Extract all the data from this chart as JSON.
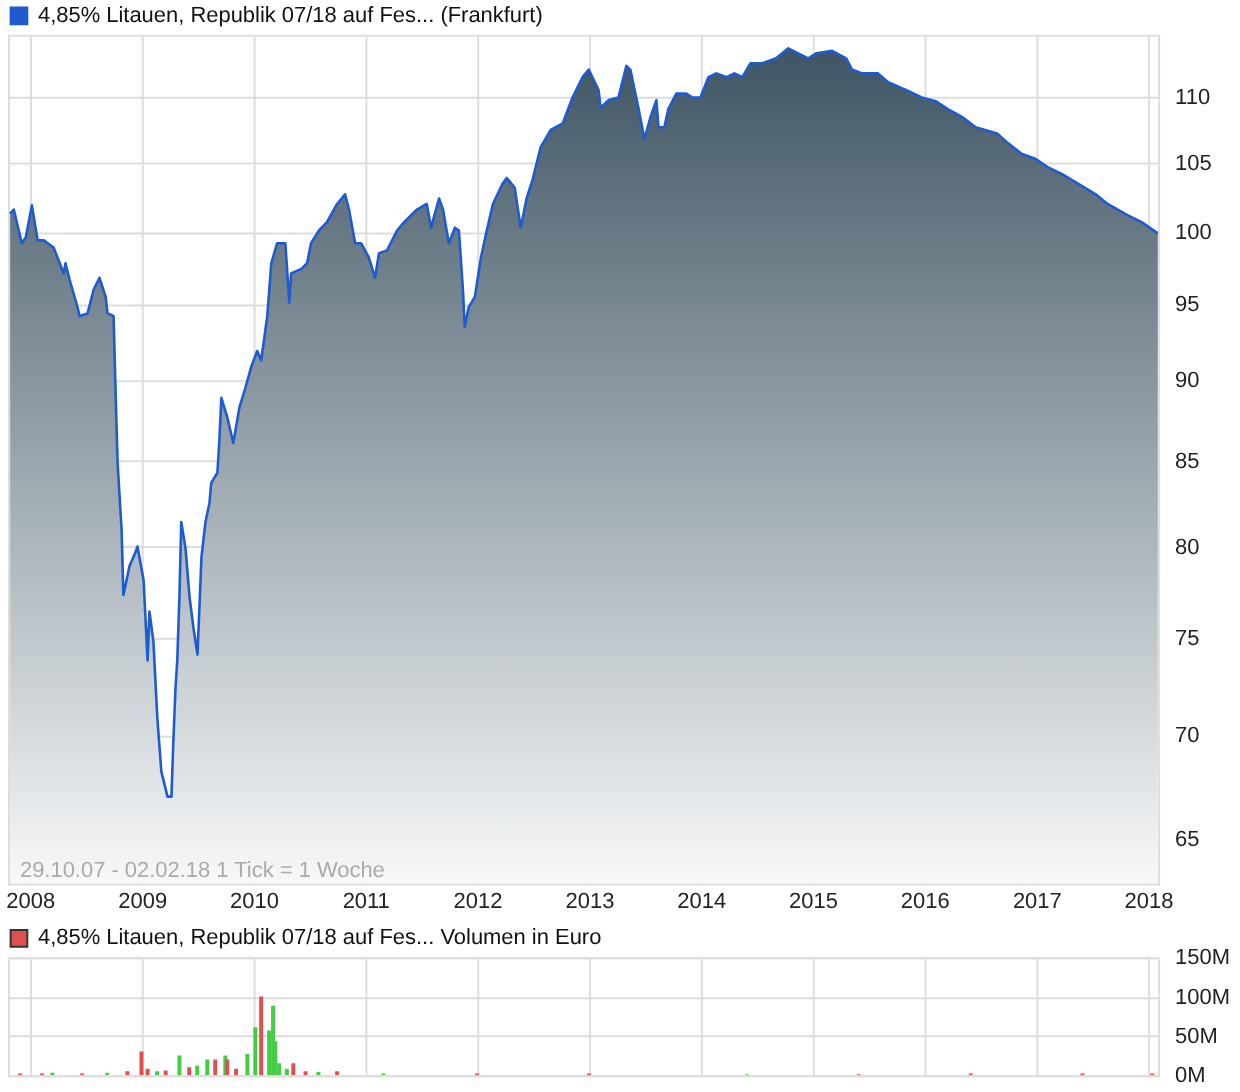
{
  "chart_data": [
    {
      "type": "area",
      "legend": "top left",
      "grid": true,
      "log": "y",
      "xlim": [
        "2007-10-22",
        "2018-02-03"
      ],
      "xticks": [
        "2008",
        "2009",
        "2010",
        "2011",
        "2012",
        "2013",
        "2014",
        "2015",
        "2016",
        "2017",
        "2018"
      ],
      "ylim": [
        63,
        115
      ],
      "yticks": [
        65,
        70,
        75,
        80,
        85,
        90,
        95,
        100,
        105,
        110
      ],
      "annotations": [
        "29.10.07 - 02.02.18   1 Tick = 1 Woche"
      ],
      "series": [
        {
          "name": "4,85% Litauen, Republik 07/18 auf Fes... (Frankfurt)",
          "color": "#1f5bd0",
          "x": [
            "2007-10-29",
            "2007-11-10",
            "2007-12-06",
            "2007-12-19",
            "2008-01-08",
            "2008-01-27",
            "2008-02-16",
            "2008-03-19",
            "2008-04-08",
            "2008-04-21",
            "2008-04-27",
            "2008-05-10",
            "2008-06-05",
            "2008-06-12",
            "2008-07-08",
            "2008-07-28",
            "2008-08-16",
            "2008-09-05",
            "2008-09-11",
            "2008-10-01",
            "2008-10-07",
            "2008-10-14",
            "2008-10-27",
            "2008-11-02",
            "2008-11-22",
            "2008-12-12",
            "2008-12-18",
            "2009-01-07",
            "2009-01-20",
            "2009-01-26",
            "2009-02-08",
            "2009-02-21",
            "2009-03-06",
            "2009-03-26",
            "2009-04-08",
            "2009-04-14",
            "2009-04-21",
            "2009-04-27",
            "2009-05-04",
            "2009-05-10",
            "2009-05-24",
            "2009-06-06",
            "2009-06-19",
            "2009-07-02",
            "2009-07-15",
            "2009-07-28",
            "2009-08-10",
            "2009-08-16",
            "2009-09-05",
            "2009-09-11",
            "2009-09-18",
            "2009-10-07",
            "2009-10-27",
            "2009-11-16",
            "2009-12-05",
            "2009-12-25",
            "2010-01-13",
            "2010-01-26",
            "2010-02-15",
            "2010-02-28",
            "2010-03-19",
            "2010-04-15",
            "2010-04-28",
            "2010-05-04",
            "2010-06-06",
            "2010-06-25",
            "2010-07-08",
            "2010-08-03",
            "2010-08-29",
            "2010-10-01",
            "2010-10-27",
            "2010-11-09",
            "2010-11-29",
            "2010-12-18",
            "2011-01-13",
            "2011-02-02",
            "2011-02-15",
            "2011-03-13",
            "2011-04-15",
            "2011-05-04",
            "2011-06-19",
            "2011-07-21",
            "2011-08-04",
            "2011-08-30",
            "2011-09-12",
            "2011-10-01",
            "2011-10-21",
            "2011-11-03",
            "2011-11-16",
            "2011-11-22",
            "2011-12-05",
            "2011-12-25",
            "2012-01-14",
            "2012-02-02",
            "2012-02-22",
            "2012-03-25",
            "2012-04-07",
            "2012-05-03",
            "2012-05-23",
            "2012-06-11",
            "2012-07-01",
            "2012-07-27",
            "2012-08-29",
            "2012-10-07",
            "2012-11-08",
            "2012-12-11",
            "2012-12-31",
            "2013-02-01",
            "2013-02-08",
            "2013-03-06",
            "2013-04-07",
            "2013-05-03",
            "2013-05-16",
            "2013-06-12",
            "2013-07-01",
            "2013-07-21",
            "2013-08-09",
            "2013-08-16",
            "2013-09-04",
            "2013-09-17",
            "2013-10-13",
            "2013-11-15",
            "2013-12-05",
            "2013-12-31",
            "2014-01-26",
            "2014-02-21",
            "2014-03-26",
            "2014-04-21",
            "2014-05-17",
            "2014-06-12",
            "2014-07-21",
            "2014-09-04",
            "2014-10-14",
            "2014-11-15",
            "2014-12-18",
            "2015-01-13",
            "2015-03-06",
            "2015-04-21",
            "2015-05-10",
            "2015-06-12",
            "2015-08-03",
            "2015-09-05",
            "2015-11-02",
            "2015-12-24",
            "2016-02-08",
            "2016-03-18",
            "2016-05-03",
            "2016-06-17",
            "2016-08-28",
            "2016-09-30",
            "2016-11-14",
            "2016-12-30",
            "2017-02-07",
            "2017-03-25",
            "2017-05-09",
            "2017-07-14",
            "2017-08-22",
            "2017-10-26",
            "2017-12-11",
            "2018-02-02"
          ],
          "values": [
            101.3,
            101.6,
            99.2,
            99.6,
            101.9,
            99.4,
            99.4,
            98.9,
            97.8,
            97.1,
            97.8,
            96.7,
            94.8,
            94.2,
            94.4,
            96.0,
            96.8,
            95.5,
            94.4,
            94.2,
            89.6,
            84.9,
            81.0,
            77.3,
            78.9,
            79.7,
            80.0,
            78.1,
            73.8,
            76.4,
            74.8,
            70.8,
            68.2,
            67.0,
            67.0,
            69.6,
            72.3,
            73.8,
            77.2,
            81.4,
            79.9,
            77.2,
            75.5,
            74.1,
            79.4,
            81.4,
            82.5,
            83.7,
            84.3,
            86.1,
            88.9,
            87.7,
            86.1,
            88.3,
            89.5,
            90.9,
            91.9,
            91.3,
            94.2,
            97.8,
            99.2,
            99.2,
            95.1,
            97.1,
            97.4,
            97.8,
            99.2,
            100.1,
            100.7,
            102.0,
            102.7,
            101.6,
            99.2,
            99.2,
            98.2,
            96.8,
            98.5,
            98.7,
            100.1,
            100.6,
            101.6,
            102.0,
            100.3,
            102.4,
            101.6,
            99.2,
            100.3,
            100.1,
            96.0,
            93.5,
            94.8,
            95.5,
            98.2,
            100.1,
            102.0,
            103.5,
            103.9,
            103.2,
            100.3,
            102.4,
            103.8,
            106.2,
            107.5,
            108.0,
            110.0,
            111.6,
            112.2,
            110.6,
            109.2,
            109.8,
            110.0,
            112.5,
            112.2,
            109.1,
            106.8,
            108.5,
            109.8,
            107.7,
            107.7,
            109.1,
            110.3,
            110.3,
            110.0,
            110.0,
            111.6,
            111.9,
            111.6,
            111.9,
            111.6,
            112.7,
            112.7,
            113.1,
            113.9,
            113.5,
            113.1,
            113.5,
            113.7,
            113.1,
            112.2,
            111.9,
            111.9,
            111.2,
            110.6,
            110.0,
            109.7,
            109.1,
            108.5,
            107.7,
            107.2,
            106.5,
            105.7,
            105.3,
            104.7,
            104.2,
            103.6,
            102.7,
            102.0,
            101.2,
            100.7,
            99.9
          ]
        }
      ]
    },
    {
      "type": "bar",
      "legend": "top left",
      "grid": true,
      "tick_labels": "y",
      "xlim": [
        "2007-10-22",
        "2018-02-03"
      ],
      "xticks": [
        {
          "value": "2008",
          "label": null
        },
        {
          "value": "2009",
          "label": null
        },
        {
          "value": "2010",
          "label": null
        },
        {
          "value": "2011",
          "label": null
        },
        {
          "value": "2012",
          "label": null
        },
        {
          "value": "2013",
          "label": null
        },
        {
          "value": "2014",
          "label": null
        },
        {
          "value": "2015",
          "label": null
        },
        {
          "value": "2016",
          "label": null
        },
        {
          "value": "2017",
          "label": null
        },
        {
          "value": "2018",
          "label": null
        }
      ],
      "ylim": [
        0,
        150
      ],
      "yticks": [
        {
          "value": 0,
          "label": "0M"
        },
        {
          "value": 50,
          "label": "50M"
        },
        {
          "value": 100,
          "label": "100M"
        },
        {
          "value": 150,
          "label": "150M"
        }
      ],
      "series": [
        {
          "name": "4,85% Litauen, Republik 07/18 auf Fes... Volumen in Euro",
          "color": "#e05050",
          "x": [
            "2007-12-01",
            "2008-02-10",
            "2008-03-15",
            "2008-06-20",
            "2008-09-10",
            "2008-11-15",
            "2008-12-31",
            "2009-01-20",
            "2009-02-20",
            "2009-03-20",
            "2009-05-04",
            "2009-06-05",
            "2009-07-01",
            "2009-08-03",
            "2009-08-29",
            "2009-10-01",
            "2009-10-07",
            "2009-11-05",
            "2009-12-12",
            "2010-01-07",
            "2010-01-26",
            "2010-02-21",
            "2010-03-06",
            "2010-03-13",
            "2010-03-26",
            "2010-04-20",
            "2010-05-11",
            "2010-06-20",
            "2010-08-01",
            "2010-10-01",
            "2011-03-01",
            "2012-01-01",
            "2013-01-01",
            "2014-06-01",
            "2015-06-01",
            "2016-06-01",
            "2017-06-01",
            "2018-01-15"
          ],
          "values": [
            2,
            2,
            3,
            2,
            3,
            5,
            30,
            8,
            5,
            6,
            25,
            10,
            12,
            20,
            20,
            25,
            20,
            8,
            27,
            61,
            100,
            57,
            88,
            43,
            15,
            8,
            15,
            5,
            4,
            5,
            2,
            2,
            2,
            1,
            1,
            2,
            2,
            2
          ],
          "colors": [
            "#e05050",
            "#e05050",
            "#44cc44",
            "#e05050",
            "#44cc44",
            "#e05050",
            "#e05050",
            "#e05050",
            "#44cc44",
            "#e05050",
            "#44cc44",
            "#e05050",
            "#44cc44",
            "#44cc44",
            "#e05050",
            "#44cc44",
            "#e05050",
            "#e05050",
            "#44cc44",
            "#44cc44",
            "#e05050",
            "#44cc44",
            "#44cc44",
            "#44cc44",
            "#44cc44",
            "#44cc44",
            "#e05050",
            "#e05050",
            "#44cc44",
            "#e05050",
            "#44cc44",
            "#e05050",
            "#e05050",
            "#44cc44",
            "#e05050",
            "#e05050",
            "#e05050",
            "#e05050"
          ]
        }
      ]
    }
  ]
}
